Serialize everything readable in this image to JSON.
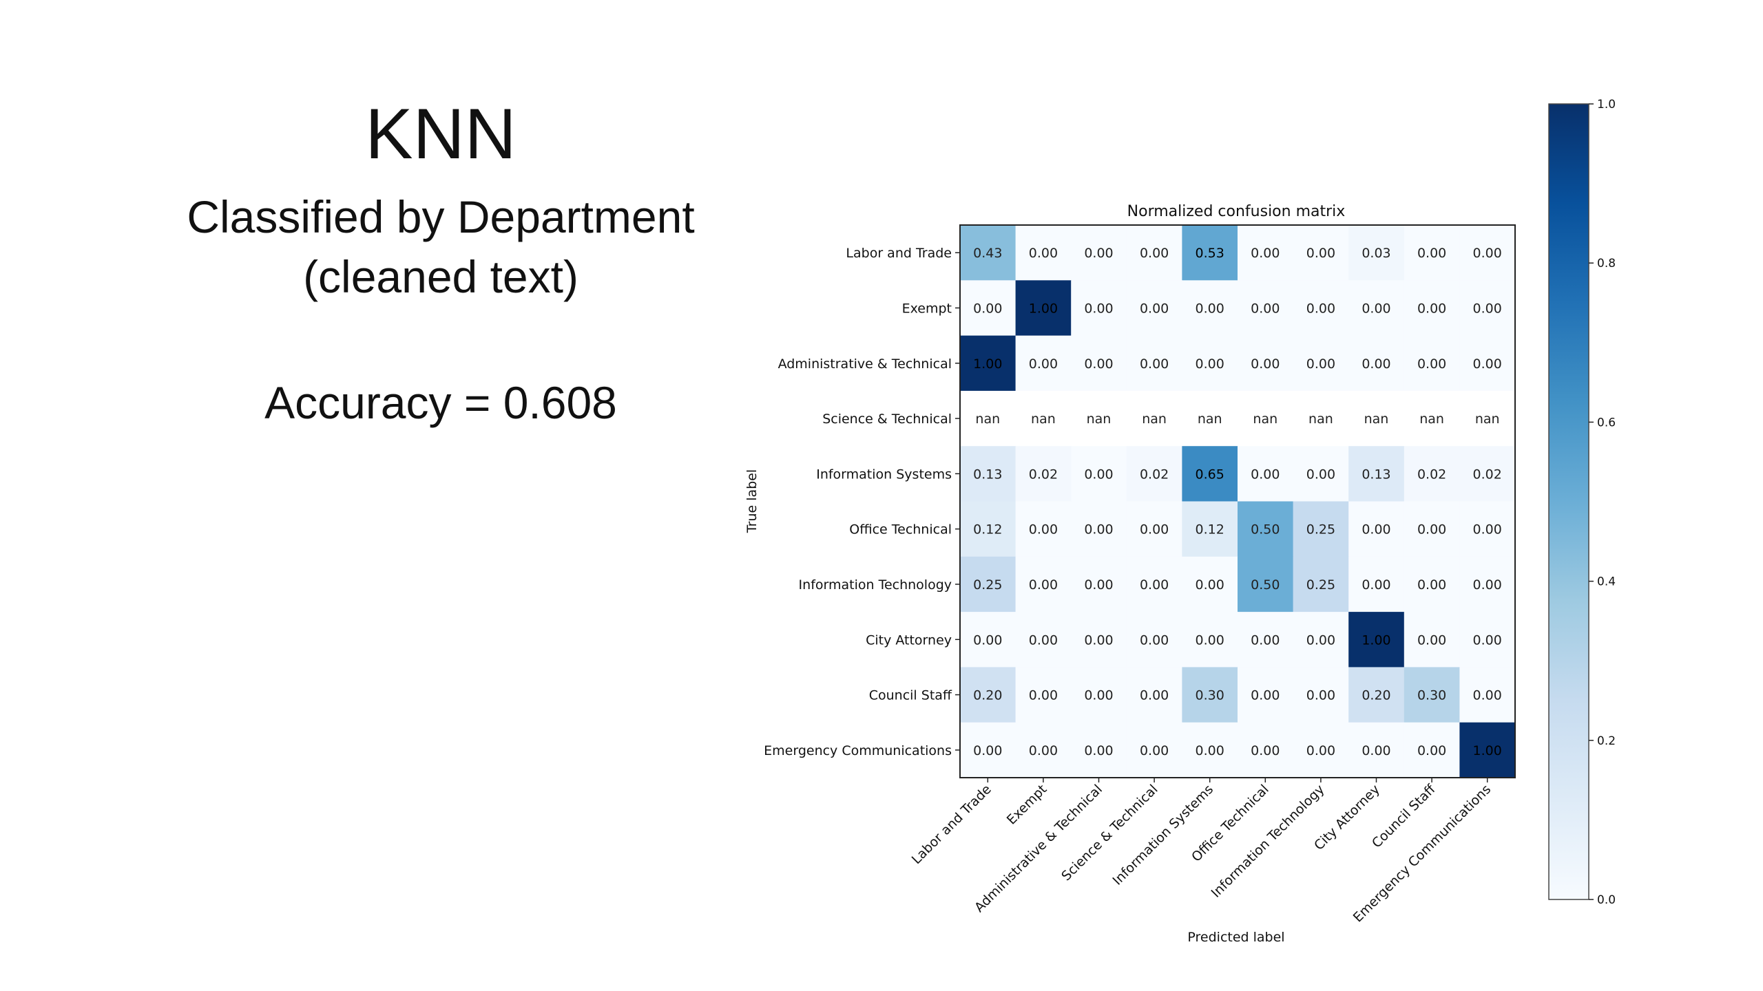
{
  "slide": {
    "title": "KNN",
    "subtitle_line1": "Classified by Department",
    "subtitle_line2": "(cleaned text)",
    "accuracy": "Accuracy = 0.608"
  },
  "chart_data": {
    "type": "heatmap",
    "title": "Normalized confusion matrix",
    "xlabel": "Predicted label",
    "ylabel": "True label",
    "colormap": "Blues",
    "vmin": 0.0,
    "vmax": 1.0,
    "colorbar_ticks": [
      "0.0",
      "0.2",
      "0.4",
      "0.6",
      "0.8",
      "1.0"
    ],
    "categories": [
      "Labor and Trade",
      "Exempt",
      "Administrative & Technical",
      "Science & Technical",
      "Information Systems",
      "Office Technical",
      "Information Technology",
      "City Attorney",
      "Council Staff",
      "Emergency Communications"
    ],
    "values": [
      [
        "0.43",
        "0.00",
        "0.00",
        "0.00",
        "0.53",
        "0.00",
        "0.00",
        "0.03",
        "0.00",
        "0.00"
      ],
      [
        "0.00",
        "1.00",
        "0.00",
        "0.00",
        "0.00",
        "0.00",
        "0.00",
        "0.00",
        "0.00",
        "0.00"
      ],
      [
        "1.00",
        "0.00",
        "0.00",
        "0.00",
        "0.00",
        "0.00",
        "0.00",
        "0.00",
        "0.00",
        "0.00"
      ],
      [
        "nan",
        "nan",
        "nan",
        "nan",
        "nan",
        "nan",
        "nan",
        "nan",
        "nan",
        "nan"
      ],
      [
        "0.13",
        "0.02",
        "0.00",
        "0.02",
        "0.65",
        "0.00",
        "0.00",
        "0.13",
        "0.02",
        "0.02"
      ],
      [
        "0.12",
        "0.00",
        "0.00",
        "0.00",
        "0.12",
        "0.50",
        "0.25",
        "0.00",
        "0.00",
        "0.00"
      ],
      [
        "0.25",
        "0.00",
        "0.00",
        "0.00",
        "0.00",
        "0.50",
        "0.25",
        "0.00",
        "0.00",
        "0.00"
      ],
      [
        "0.00",
        "0.00",
        "0.00",
        "0.00",
        "0.00",
        "0.00",
        "0.00",
        "1.00",
        "0.00",
        "0.00"
      ],
      [
        "0.20",
        "0.00",
        "0.00",
        "0.00",
        "0.30",
        "0.00",
        "0.00",
        "0.20",
        "0.30",
        "0.00"
      ],
      [
        "0.00",
        "0.00",
        "0.00",
        "0.00",
        "0.00",
        "0.00",
        "0.00",
        "0.00",
        "0.00",
        "1.00"
      ]
    ]
  }
}
